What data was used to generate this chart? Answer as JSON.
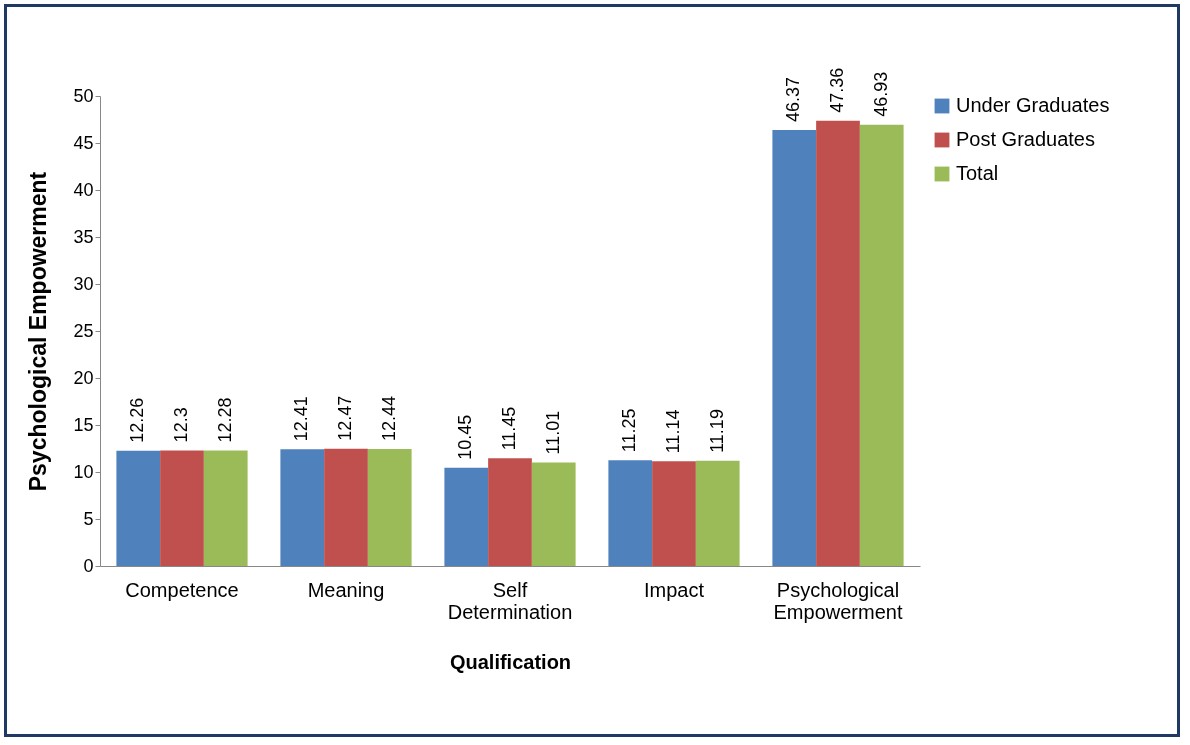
{
  "chart_data": {
    "type": "bar",
    "xlabel": "Qualification",
    "ylabel": "Psychological Empowerment",
    "categories": [
      "Competence",
      "Meaning",
      "Self Determination",
      "Impact",
      "Psychological Empowerment"
    ],
    "series": [
      {
        "name": "Under Graduates",
        "color": "#4f81bd",
        "values": [
          12.26,
          12.41,
          10.45,
          11.25,
          46.37
        ]
      },
      {
        "name": "Post Graduates",
        "color": "#c0504d",
        "values": [
          12.3,
          12.47,
          11.45,
          11.14,
          47.36
        ]
      },
      {
        "name": "Total",
        "color": "#9bbb59",
        "values": [
          12.28,
          12.44,
          11.01,
          11.19,
          46.93
        ]
      }
    ],
    "ylim": [
      0,
      50
    ],
    "yticks": [
      0,
      5,
      10,
      15,
      20,
      25,
      30,
      35,
      40,
      45,
      50
    ],
    "grid": false,
    "legend": "right",
    "data_labels": true
  }
}
